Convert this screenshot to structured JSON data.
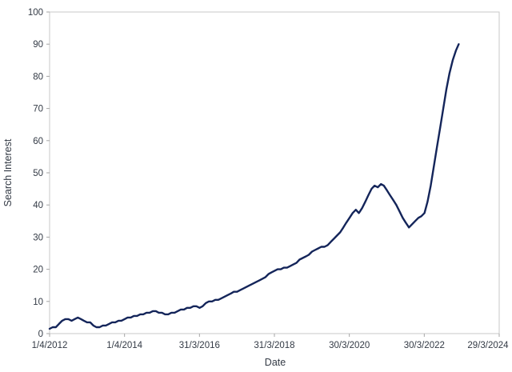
{
  "chart": {
    "xlabel": "Date",
    "ylabel": "Search Interest"
  },
  "colors": {
    "line": "#14255a",
    "text": "#333a45",
    "axis_border": "#c9c9c9",
    "tick_mark": "#a6a6a6",
    "background": "#ffffff"
  },
  "chart_data": {
    "type": "line",
    "title": "",
    "xlabel": "Date",
    "ylabel": "Search Interest",
    "ylim": [
      0,
      100
    ],
    "y_tick_step": 10,
    "grid": false,
    "legend": false,
    "x_range": [
      "2012-04-01",
      "2024-03-29"
    ],
    "x_ticks": [
      {
        "label": "1/4/2012",
        "date": "2012-04-01"
      },
      {
        "label": "1/4/2014",
        "date": "2014-04-01"
      },
      {
        "label": "31/3/2016",
        "date": "2016-03-31"
      },
      {
        "label": "31/3/2018",
        "date": "2018-03-31"
      },
      {
        "label": "30/3/2020",
        "date": "2020-03-30"
      },
      {
        "label": "30/3/2022",
        "date": "2022-03-30"
      },
      {
        "label": "29/3/2024",
        "date": "2024-03-29"
      }
    ],
    "series": [
      {
        "name": "Search Interest",
        "color": "#14255a",
        "points": [
          [
            "2012-04-01",
            1.5
          ],
          [
            "2012-05-01",
            2
          ],
          [
            "2012-06-01",
            2
          ],
          [
            "2012-07-01",
            3
          ],
          [
            "2012-08-01",
            4
          ],
          [
            "2012-09-01",
            4.5
          ],
          [
            "2012-10-01",
            4.5
          ],
          [
            "2012-11-01",
            4
          ],
          [
            "2012-12-01",
            4.5
          ],
          [
            "2013-01-01",
            5
          ],
          [
            "2013-02-01",
            4.5
          ],
          [
            "2013-03-01",
            4
          ],
          [
            "2013-04-01",
            3.5
          ],
          [
            "2013-05-01",
            3.5
          ],
          [
            "2013-06-01",
            2.5
          ],
          [
            "2013-07-01",
            2
          ],
          [
            "2013-08-01",
            2
          ],
          [
            "2013-09-01",
            2.5
          ],
          [
            "2013-10-01",
            2.5
          ],
          [
            "2013-11-01",
            3
          ],
          [
            "2013-12-01",
            3.5
          ],
          [
            "2014-01-01",
            3.5
          ],
          [
            "2014-02-01",
            4
          ],
          [
            "2014-03-01",
            4
          ],
          [
            "2014-04-01",
            4.5
          ],
          [
            "2014-05-01",
            5
          ],
          [
            "2014-06-01",
            5
          ],
          [
            "2014-07-01",
            5.5
          ],
          [
            "2014-08-01",
            5.5
          ],
          [
            "2014-09-01",
            6
          ],
          [
            "2014-10-01",
            6
          ],
          [
            "2014-11-01",
            6.5
          ],
          [
            "2014-12-01",
            6.5
          ],
          [
            "2015-01-01",
            7
          ],
          [
            "2015-02-01",
            7
          ],
          [
            "2015-03-01",
            6.5
          ],
          [
            "2015-04-01",
            6.5
          ],
          [
            "2015-05-01",
            6
          ],
          [
            "2015-06-01",
            6
          ],
          [
            "2015-07-01",
            6.5
          ],
          [
            "2015-08-01",
            6.5
          ],
          [
            "2015-09-01",
            7
          ],
          [
            "2015-10-01",
            7.5
          ],
          [
            "2015-11-01",
            7.5
          ],
          [
            "2015-12-01",
            8
          ],
          [
            "2016-01-01",
            8
          ],
          [
            "2016-02-01",
            8.5
          ],
          [
            "2016-03-01",
            8.5
          ],
          [
            "2016-04-01",
            8
          ],
          [
            "2016-05-01",
            8.5
          ],
          [
            "2016-06-01",
            9.5
          ],
          [
            "2016-07-01",
            10
          ],
          [
            "2016-08-01",
            10
          ],
          [
            "2016-09-01",
            10.5
          ],
          [
            "2016-10-01",
            10.5
          ],
          [
            "2016-11-01",
            11
          ],
          [
            "2016-12-01",
            11.5
          ],
          [
            "2017-01-01",
            12
          ],
          [
            "2017-02-01",
            12.5
          ],
          [
            "2017-03-01",
            13
          ],
          [
            "2017-04-01",
            13
          ],
          [
            "2017-05-01",
            13.5
          ],
          [
            "2017-06-01",
            14
          ],
          [
            "2017-07-01",
            14.5
          ],
          [
            "2017-08-01",
            15
          ],
          [
            "2017-09-01",
            15.5
          ],
          [
            "2017-10-01",
            16
          ],
          [
            "2017-11-01",
            16.5
          ],
          [
            "2017-12-01",
            17
          ],
          [
            "2018-01-01",
            17.5
          ],
          [
            "2018-02-01",
            18.5
          ],
          [
            "2018-03-01",
            19
          ],
          [
            "2018-04-01",
            19.5
          ],
          [
            "2018-05-01",
            20
          ],
          [
            "2018-06-01",
            20
          ],
          [
            "2018-07-01",
            20.5
          ],
          [
            "2018-08-01",
            20.5
          ],
          [
            "2018-09-01",
            21
          ],
          [
            "2018-10-01",
            21.5
          ],
          [
            "2018-11-01",
            22
          ],
          [
            "2018-12-01",
            23
          ],
          [
            "2019-01-01",
            23.5
          ],
          [
            "2019-02-01",
            24
          ],
          [
            "2019-03-01",
            24.5
          ],
          [
            "2019-04-01",
            25.5
          ],
          [
            "2019-05-01",
            26
          ],
          [
            "2019-06-01",
            26.5
          ],
          [
            "2019-07-01",
            27
          ],
          [
            "2019-08-01",
            27
          ],
          [
            "2019-09-01",
            27.5
          ],
          [
            "2019-10-01",
            28.5
          ],
          [
            "2019-11-01",
            29.5
          ],
          [
            "2019-12-01",
            30.5
          ],
          [
            "2020-01-01",
            31.5
          ],
          [
            "2020-02-01",
            33
          ],
          [
            "2020-03-01",
            34.5
          ],
          [
            "2020-04-01",
            36
          ],
          [
            "2020-05-01",
            37.5
          ],
          [
            "2020-06-01",
            38.5
          ],
          [
            "2020-07-01",
            37.5
          ],
          [
            "2020-08-01",
            39
          ],
          [
            "2020-09-01",
            41
          ],
          [
            "2020-10-01",
            43
          ],
          [
            "2020-11-01",
            45
          ],
          [
            "2020-12-01",
            46
          ],
          [
            "2021-01-01",
            45.5
          ],
          [
            "2021-02-01",
            46.5
          ],
          [
            "2021-03-01",
            46
          ],
          [
            "2021-04-01",
            44.5
          ],
          [
            "2021-05-01",
            43
          ],
          [
            "2021-06-01",
            41.5
          ],
          [
            "2021-07-01",
            40
          ],
          [
            "2021-08-01",
            38
          ],
          [
            "2021-09-01",
            36
          ],
          [
            "2021-10-01",
            34.5
          ],
          [
            "2021-11-01",
            33
          ],
          [
            "2021-12-01",
            34
          ],
          [
            "2022-01-01",
            35
          ],
          [
            "2022-02-01",
            36
          ],
          [
            "2022-03-01",
            36.5
          ],
          [
            "2022-04-01",
            37.5
          ],
          [
            "2022-05-01",
            41
          ],
          [
            "2022-06-01",
            46
          ],
          [
            "2022-07-01",
            52
          ],
          [
            "2022-08-01",
            58
          ],
          [
            "2022-09-01",
            64
          ],
          [
            "2022-10-01",
            70
          ],
          [
            "2022-11-01",
            76
          ],
          [
            "2022-12-01",
            81
          ],
          [
            "2023-01-01",
            85
          ],
          [
            "2023-02-01",
            88
          ],
          [
            "2023-03-01",
            90
          ]
        ]
      }
    ]
  }
}
